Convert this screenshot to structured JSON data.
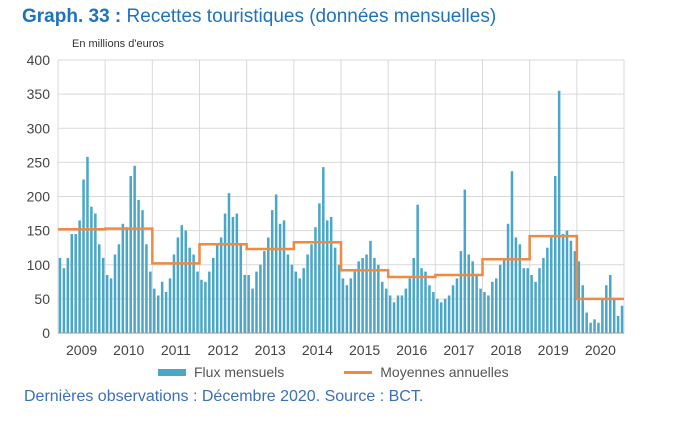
{
  "header": {
    "title_prefix": "Graph. 33 :",
    "title_text": "Recettes touristiques (données mensuelles)"
  },
  "unit_label": "En millions d'euros",
  "legend": {
    "bars": "Flux mensuels",
    "line": "Moyennes annuelles"
  },
  "source": "Dernières observations : Décembre 2020. Source : BCT.",
  "colors": {
    "bars": "#4aa7c7",
    "line": "#ee8a44",
    "grid": "#d9d9d9",
    "title": "#1e73be"
  },
  "chart_data": {
    "type": "bar",
    "title": "Recettes touristiques (données mensuelles)",
    "ylabel": "En millions d'euros",
    "ylim": [
      0,
      400
    ],
    "yticks": [
      0,
      50,
      100,
      150,
      200,
      250,
      300,
      350,
      400
    ],
    "grid": true,
    "legend_position": "bottom",
    "years": [
      "2009",
      "2010",
      "2011",
      "2012",
      "2013",
      "2014",
      "2015",
      "2016",
      "2017",
      "2018",
      "2019",
      "2020"
    ],
    "series": [
      {
        "name": "Flux mensuels",
        "type": "bar",
        "values": [
          110,
          95,
          110,
          145,
          145,
          165,
          225,
          258,
          185,
          175,
          130,
          110,
          85,
          80,
          115,
          130,
          160,
          155,
          230,
          245,
          195,
          180,
          130,
          90,
          65,
          55,
          75,
          60,
          80,
          115,
          140,
          158,
          150,
          125,
          115,
          90,
          78,
          75,
          90,
          110,
          130,
          140,
          175,
          205,
          170,
          175,
          130,
          85,
          85,
          65,
          90,
          100,
          120,
          140,
          180,
          203,
          160,
          165,
          115,
          100,
          90,
          80,
          95,
          115,
          130,
          155,
          190,
          243,
          165,
          170,
          125,
          100,
          80,
          70,
          80,
          90,
          105,
          110,
          115,
          135,
          110,
          100,
          75,
          65,
          55,
          45,
          55,
          55,
          65,
          80,
          110,
          188,
          95,
          90,
          70,
          60,
          50,
          45,
          50,
          55,
          70,
          80,
          120,
          210,
          115,
          105,
          85,
          65,
          60,
          55,
          75,
          80,
          100,
          110,
          160,
          237,
          140,
          130,
          95,
          95,
          85,
          75,
          95,
          110,
          125,
          140,
          230,
          355,
          145,
          150,
          135,
          120,
          105,
          70,
          30,
          15,
          20,
          15,
          50,
          70,
          85,
          50,
          25,
          40
        ]
      },
      {
        "name": "Moyennes annuelles",
        "type": "step",
        "values": [
          152,
          153,
          102,
          130,
          123,
          133,
          92,
          82,
          85,
          108,
          142,
          50
        ]
      }
    ]
  }
}
